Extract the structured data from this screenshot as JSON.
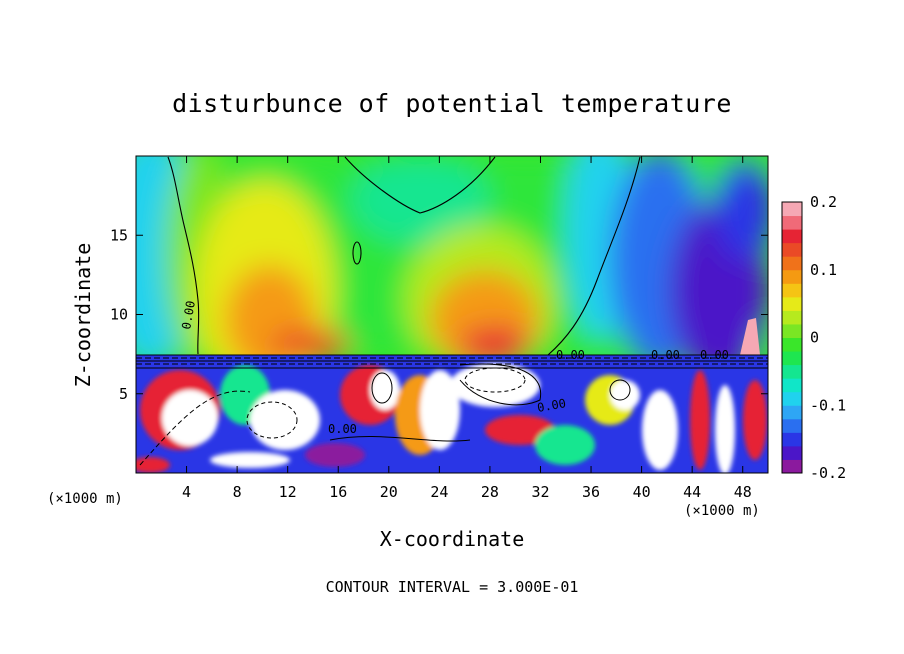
{
  "chart_data": {
    "type": "heatmap",
    "title": "disturbunce of potential temperature",
    "xlabel": "X-coordinate",
    "ylabel": "Z-coordinate",
    "x_unit_left": "(×1000 m)",
    "x_unit_right": "(×1000 m)",
    "footer": "CONTOUR INTERVAL = 3.000E-01",
    "xlim": [
      0,
      50
    ],
    "ylim": [
      0,
      20
    ],
    "x_ticks": [
      4,
      8,
      12,
      16,
      20,
      24,
      28,
      32,
      36,
      40,
      44,
      48
    ],
    "y_ticks": [
      5,
      10,
      15
    ],
    "colorbar": {
      "min": -0.2,
      "max": 0.2,
      "ticks": [
        "0.2",
        "0.1",
        "0",
        "-0.1",
        "-0.2"
      ],
      "colors": [
        "#8b1a9e",
        "#4b16c8",
        "#2a36e6",
        "#2a6ff0",
        "#2ea6f5",
        "#20d2ee",
        "#10e6c8",
        "#14e690",
        "#1ee650",
        "#3ae62a",
        "#7ae624",
        "#b6ea1e",
        "#e6ea18",
        "#f5c414",
        "#f59a12",
        "#f0721a",
        "#ea4a26",
        "#e62434",
        "#f06a78",
        "#f5a8b4"
      ]
    },
    "contour_labels": [
      "0.00",
      "0.00",
      "0.00",
      "0.00",
      "0.00",
      "0.00"
    ]
  }
}
